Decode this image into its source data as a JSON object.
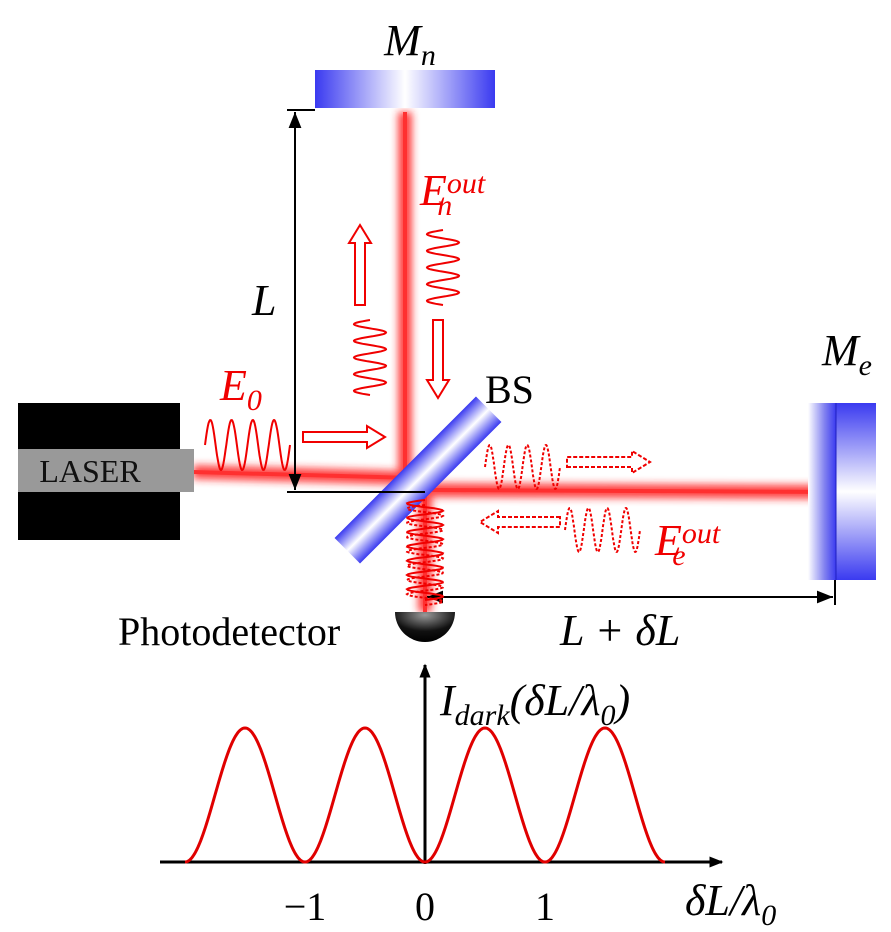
{
  "labels": {
    "mirror_n": [
      {
        "text": "M",
        "style": "main"
      },
      {
        "text": "n",
        "style": "sub"
      }
    ],
    "field_n": [
      {
        "text": "E",
        "style": "main"
      },
      {
        "text": "out",
        "style": "sup"
      },
      {
        "text": "n",
        "style": "sub"
      }
    ],
    "arm_length": "L",
    "field_in": [
      {
        "text": "E",
        "style": "main"
      },
      {
        "text": "0",
        "style": "sub"
      }
    ],
    "beam_splitter": "BS",
    "laser": "LASER",
    "mirror_e": [
      {
        "text": "M",
        "style": "main"
      },
      {
        "text": "e",
        "style": "sub"
      }
    ],
    "field_e": [
      {
        "text": "E",
        "style": "main"
      },
      {
        "text": "out",
        "style": "sup"
      },
      {
        "text": "e",
        "style": "sub"
      }
    ],
    "detector": "Photodetector",
    "arm_length_e": "L + δL"
  },
  "plot": {
    "y_label": [
      {
        "text": "I",
        "style": "main"
      },
      {
        "text": "dark",
        "style": "sub"
      },
      {
        "text": "(δL/λ",
        "style": "main"
      },
      {
        "text": "0",
        "style": "sub"
      },
      {
        "text": ")",
        "style": "main"
      }
    ],
    "x_label": [
      {
        "text": "δL/λ",
        "style": "main"
      },
      {
        "text": "0",
        "style": "sub"
      }
    ],
    "xlim": [
      -2,
      2
    ],
    "xticks": [
      {
        "value": -1,
        "label": "−1"
      },
      0,
      1
    ]
  }
}
